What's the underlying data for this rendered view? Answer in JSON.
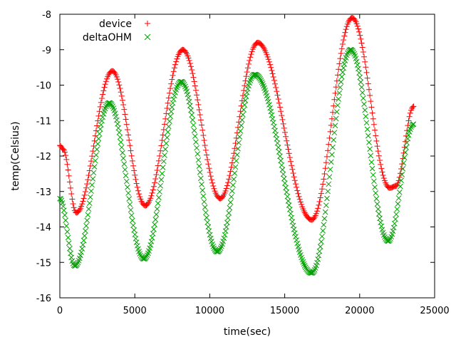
{
  "chart_data": {
    "type": "scatter",
    "xlabel": "time(sec)",
    "ylabel": "temp(Celsius)",
    "xlim": [
      0,
      25000
    ],
    "ylim": [
      -16,
      -8
    ],
    "xticks": [
      0,
      5000,
      10000,
      15000,
      20000,
      25000
    ],
    "yticks": [
      -16,
      -15,
      -14,
      -13,
      -12,
      -11,
      -10,
      -9,
      -8
    ],
    "grid": false,
    "legend_position": "top-left",
    "series": [
      {
        "name": "device",
        "color": "#ff0000",
        "marker": "plus",
        "keypoints": [
          [
            0,
            -11.7
          ],
          [
            200,
            -11.8
          ],
          [
            1100,
            -13.6
          ],
          [
            3500,
            -9.6
          ],
          [
            5700,
            -13.4
          ],
          [
            8200,
            -9.0
          ],
          [
            10700,
            -13.2
          ],
          [
            13200,
            -8.8
          ],
          [
            16800,
            -13.8
          ],
          [
            19500,
            -8.1
          ],
          [
            22000,
            -12.9
          ],
          [
            22400,
            -12.85
          ],
          [
            23600,
            -10.6
          ]
        ]
      },
      {
        "name": "deltaOHM",
        "color": "#00a000",
        "marker": "cross",
        "keypoints": [
          [
            0,
            -13.2
          ],
          [
            1000,
            -15.1
          ],
          [
            3300,
            -10.5
          ],
          [
            5600,
            -14.9
          ],
          [
            8100,
            -9.9
          ],
          [
            10500,
            -14.7
          ],
          [
            13000,
            -9.7
          ],
          [
            16800,
            -15.3
          ],
          [
            19400,
            -9.0
          ],
          [
            21900,
            -14.4
          ],
          [
            23600,
            -11.1
          ]
        ]
      }
    ]
  }
}
